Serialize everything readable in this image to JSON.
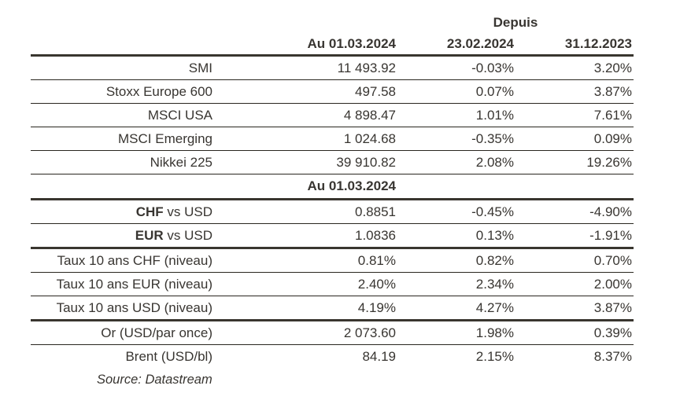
{
  "colors": {
    "background": "#ffffff",
    "text": "#383531",
    "thick_border": "#39362f",
    "thin_border": "#29261f"
  },
  "table": {
    "header": {
      "depuis": "Depuis",
      "columns": [
        "Au 01.03.2024",
        "23.02.2024",
        "31.12.2023"
      ]
    },
    "mid_header": "Au 01.03.2024",
    "rows": [
      {
        "label_bold": "",
        "label": "SMI",
        "values": [
          "11 493.92",
          "-0.03%",
          "3.20%"
        ]
      },
      {
        "label_bold": "",
        "label": "Stoxx Europe 600",
        "values": [
          "497.58",
          "0.07%",
          "3.87%"
        ]
      },
      {
        "label_bold": "",
        "label": "MSCI USA",
        "values": [
          "4 898.47",
          "1.01%",
          "7.61%"
        ]
      },
      {
        "label_bold": "",
        "label": "MSCI Emerging",
        "values": [
          "1 024.68",
          "-0.35%",
          "0.09%"
        ]
      },
      {
        "label_bold": "",
        "label": "Nikkei 225",
        "values": [
          "39 910.82",
          "2.08%",
          "19.26%"
        ]
      },
      {
        "label_bold": "CHF",
        "label": " vs USD",
        "values": [
          "0.8851",
          "-0.45%",
          "-4.90%"
        ]
      },
      {
        "label_bold": "EUR",
        "label": " vs USD",
        "values": [
          "1.0836",
          "0.13%",
          "-1.91%"
        ]
      },
      {
        "label_bold": "",
        "label": "Taux 10 ans CHF (niveau)",
        "values": [
          "0.81%",
          "0.82%",
          "0.70%"
        ]
      },
      {
        "label_bold": "",
        "label": "Taux 10 ans EUR (niveau)",
        "values": [
          "2.40%",
          "2.34%",
          "2.00%"
        ]
      },
      {
        "label_bold": "",
        "label": "Taux 10 ans USD (niveau)",
        "values": [
          "4.19%",
          "4.27%",
          "3.87%"
        ]
      },
      {
        "label_bold": "",
        "label": "Or (USD/par once)",
        "values": [
          "2 073.60",
          "1.98%",
          "0.39%"
        ]
      },
      {
        "label_bold": "",
        "label": "Brent (USD/bl)",
        "values": [
          "84.19",
          "2.15%",
          "8.37%"
        ]
      }
    ],
    "source": "Source: Datastream"
  }
}
